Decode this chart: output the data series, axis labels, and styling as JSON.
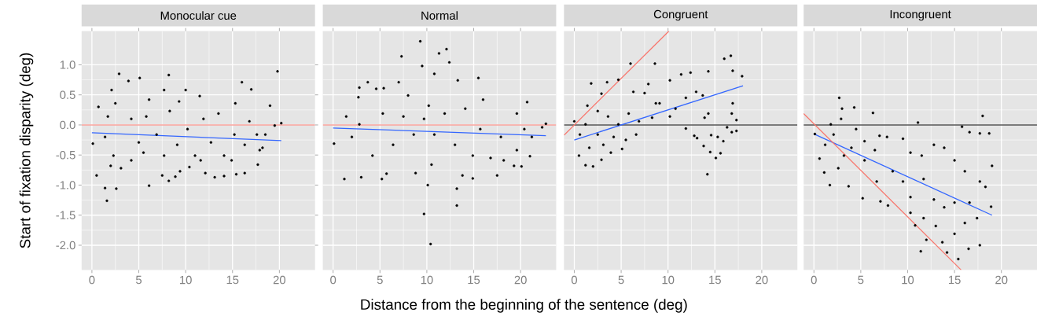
{
  "chart_data": [
    {
      "type": "scatter",
      "title": "Monocular cue",
      "ylabel": "Start of fixation disparity (deg)",
      "xlabel": "Distance from the beginning of the sentence (deg)",
      "xlim": [
        -1.1,
        23.8
      ],
      "ylim": [
        -2.41,
        1.56
      ],
      "xticks": [
        0,
        5,
        10,
        15,
        20
      ],
      "yticks": [
        {
          "value": -2,
          "label": "-2.0"
        },
        {
          "value": -1.5,
          "label": "-1.5"
        },
        {
          "value": -1,
          "label": "-1.0"
        },
        {
          "value": -0.5,
          "label": "-0.5"
        },
        {
          "value": 0,
          "label": "0.0"
        },
        {
          "value": 0.5,
          "label": "0.5"
        },
        {
          "value": 1,
          "label": "1.0"
        }
      ],
      "grid": true,
      "ref_lines": [
        {
          "axis": "y",
          "value": 0,
          "color": "#f8766d"
        }
      ],
      "series": [
        {
          "marker": "circle",
          "color": "#000000",
          "x": [
            2.9,
            19.8,
            5.1,
            8.2,
            3.9,
            16.0,
            17.0,
            7.7,
            10.0,
            2.1,
            11.5,
            9.3,
            19.0,
            15.3,
            0.7,
            6.1,
            0.1,
            0.5,
            1.4,
            1.6,
            2.6,
            6.1,
            8.2,
            7.5,
            8.9,
            9.4,
            10.4,
            12.1,
            13.1,
            14.1,
            15.4,
            16.3,
            17.7,
            18.2,
            18.5,
            20.2,
            19.5,
            1.7,
            1.4,
            2.3,
            3.1,
            4.2,
            5.0,
            5.8,
            6.9,
            8.3,
            9.1,
            10.2,
            11.0,
            11.9,
            12.7,
            13.5,
            14.1,
            15.2,
            16.3,
            16.8,
            17.6,
            17.9,
            2.5,
            4.2,
            5.5,
            7.7,
            11.6,
            14.9,
            2.0
          ],
          "values": [
            0.85,
            0.89,
            0.78,
            0.83,
            0.73,
            0.71,
            0.59,
            0.58,
            0.58,
            0.58,
            0.48,
            0.39,
            0.32,
            0.36,
            0.3,
            0.42,
            -0.31,
            -0.84,
            -1.05,
            -1.26,
            -1.06,
            -1.01,
            -0.93,
            -0.84,
            -0.86,
            -0.77,
            -0.7,
            -0.8,
            -0.87,
            -0.85,
            -0.82,
            -0.8,
            -0.66,
            -0.38,
            -0.16,
            0.03,
            -0.01,
            0.14,
            -0.2,
            -0.51,
            -0.72,
            -0.59,
            -0.29,
            0.14,
            -0.16,
            0.23,
            -0.33,
            -0.07,
            -0.51,
            0.1,
            -0.29,
            0.19,
            -0.51,
            -0.16,
            -0.33,
            0.06,
            -0.16,
            -0.42,
            0.36,
            0.1,
            -0.46,
            -0.51,
            -0.59,
            -0.59,
            -0.68
          ]
        },
        {
          "type": "line",
          "color": "#3366ff",
          "x": [
            0,
            20.2
          ],
          "values": [
            -0.13,
            -0.26
          ]
        }
      ]
    },
    {
      "type": "scatter",
      "title": "Normal",
      "xlim": [
        -1.1,
        23.8
      ],
      "ylim": [
        -2.41,
        1.56
      ],
      "xticks": [
        0,
        5,
        10,
        15,
        20
      ],
      "yticks": [
        -2,
        -1.5,
        -1,
        -0.5,
        0,
        0.5,
        1
      ],
      "tick_labels": "x",
      "grid": true,
      "ref_lines": [
        {
          "axis": "y",
          "value": 0,
          "color": "#f8766d"
        }
      ],
      "series": [
        {
          "marker": "circle",
          "color": "#000000",
          "x": [
            9.3,
            12.1,
            11.3,
            12.4,
            7.3,
            9.5,
            10.8,
            13.3,
            15.5,
            7.0,
            3.7,
            2.8,
            4.6,
            5.4,
            8.0,
            2.7,
            20.7,
            16.0,
            10.2,
            22.7,
            22.3,
            0.1,
            1.2,
            3.0,
            5.2,
            5.7,
            8.8,
            10.1,
            9.7,
            10.4,
            13.2,
            13.2,
            14.9,
            13.8,
            17.5,
            10.5,
            19.3,
            20.1,
            21.0,
            18.2,
            16.8,
            1.4,
            2.0,
            2.8,
            4.2,
            5.3,
            6.4,
            7.5,
            8.6,
            9.7,
            10.8,
            11.9,
            13.0,
            14.1,
            14.9,
            15.7,
            17.9,
            19.6,
            20.4,
            21.2,
            19.6
          ],
          "values": [
            1.39,
            1.26,
            1.19,
            1.04,
            1.14,
            0.98,
            0.85,
            0.74,
            0.78,
            0.71,
            0.71,
            0.62,
            0.6,
            0.61,
            0.49,
            0.46,
            0.38,
            0.42,
            0.32,
            0.02,
            -0.04,
            -0.31,
            -0.9,
            -0.87,
            -0.9,
            -0.81,
            -0.8,
            -1.0,
            -1.48,
            -1.98,
            -1.06,
            -1.34,
            -0.89,
            -0.84,
            -0.84,
            -0.66,
            -0.68,
            -0.69,
            -0.52,
            -0.59,
            -0.55,
            0.14,
            -0.2,
            0.01,
            -0.51,
            0.19,
            -0.33,
            0.14,
            -0.16,
            0.1,
            -0.16,
            0.19,
            -0.33,
            0.27,
            -0.51,
            -0.07,
            -0.2,
            0.19,
            -0.07,
            -0.2,
            -0.42
          ]
        },
        {
          "type": "line",
          "color": "#3366ff",
          "x": [
            0,
            22.7
          ],
          "values": [
            -0.05,
            -0.18
          ]
        }
      ]
    },
    {
      "type": "scatter",
      "title": "Congruent",
      "xlim": [
        -1.1,
        23.8
      ],
      "ylim": [
        -2.41,
        1.56
      ],
      "xticks": [
        0,
        5,
        10,
        15,
        20
      ],
      "yticks": [
        -2,
        -1.5,
        -1,
        -0.5,
        0,
        0.5,
        1
      ],
      "tick_labels": "x",
      "grid": true,
      "ref_lines": [
        {
          "axis": "y",
          "value": 0,
          "color": "#000000"
        }
      ],
      "series": [
        {
          "marker": "circle",
          "color": "#000000",
          "x": [
            0,
            6.0,
            8.6,
            16.0,
            16.7,
            1.8,
            3.5,
            4.7,
            2.9,
            1.4,
            17.9,
            16.9,
            14.3,
            12.4,
            11.4,
            10.2,
            7.9,
            6.3,
            7.5,
            8.7,
            10.8,
            11.9,
            13.0,
            13.7,
            13.9,
            14.3,
            11.9,
            12.8,
            13.1,
            13.8,
            14.2,
            14.5,
            15.1,
            15.6,
            15.9,
            15.3,
            14.6,
            16.3,
            16.8,
            17.3,
            17.3,
            16.8,
            16.9,
            1.2,
            2.0,
            2.9,
            0.5,
            1.6,
            2.5,
            3.1,
            3.9,
            0.6,
            4.2,
            5.1,
            5.5,
            6.6,
            4.7,
            6.9,
            5.8,
            8.3,
            9.1,
            10.2,
            3.6,
            2.5,
            1.2
          ],
          "values": [
            0.06,
            1.02,
            1.02,
            1.1,
            1.15,
            0.69,
            0.71,
            0.75,
            0.52,
            0.32,
            0.81,
            0.9,
            0.89,
            0.87,
            0.84,
            0.74,
            0.68,
            0.55,
            0.53,
            0.36,
            0.27,
            0.45,
            0.55,
            0.49,
            0.12,
            0.19,
            -0.06,
            -0.18,
            -0.22,
            -0.35,
            -0.82,
            -0.45,
            -0.55,
            -0.47,
            -0.27,
            -0.2,
            -0.17,
            -0.04,
            -0.12,
            -0.1,
            0.08,
            0.19,
            0.36,
            -0.67,
            -0.69,
            -0.58,
            -0.51,
            -0.38,
            -0.16,
            -0.33,
            -0.46,
            -0.16,
            -0.2,
            -0.4,
            -0.25,
            -0.16,
            0.01,
            0.06,
            0.19,
            0.12,
            0.36,
            0.14,
            0.14,
            0.23,
            0.01
          ]
        },
        {
          "type": "line",
          "color": "#3366ff",
          "x": [
            0,
            18.0
          ],
          "values": [
            -0.25,
            0.65
          ]
        },
        {
          "type": "line",
          "color": "#f8766d",
          "x": [
            -1.1,
            10.1
          ],
          "values": [
            -0.17,
            1.56
          ]
        }
      ]
    },
    {
      "type": "scatter",
      "title": "Incongruent",
      "xlim": [
        -1.1,
        23.8
      ],
      "ylim": [
        -2.41,
        1.56
      ],
      "xticks": [
        0,
        5,
        10,
        15,
        20
      ],
      "yticks": [
        -2,
        -1.5,
        -1,
        -0.5,
        0,
        0.5,
        1
      ],
      "tick_labels": "x",
      "grid": true,
      "ref_lines": [
        {
          "axis": "y",
          "value": 0,
          "color": "#000000"
        }
      ],
      "series": [
        {
          "marker": "circle",
          "color": "#000000",
          "x": [
            2.7,
            3.0,
            4.3,
            6.3,
            11.1,
            18.0,
            18.7,
            17.7,
            16.6,
            15.8,
            19.0,
            18.9,
            17.7,
            16.5,
            15.4,
            14.2,
            13.7,
            11.4,
            12.0,
            10.8,
            13.0,
            15.0,
            16.1,
            17.4,
            18.3,
            17.7,
            16.1,
            15.0,
            13.9,
            12.8,
            11.5,
            10.3,
            9.5,
            7.8,
            7.0,
            6.5,
            5.4,
            4.5,
            4.0,
            2.9,
            1.8,
            2.1,
            1.2,
            0.6,
            0.1,
            1.1,
            1.7,
            3.7,
            5.2,
            7.1,
            7.9,
            6.7,
            8.4,
            9.5,
            10.3,
            11.7,
            12.8,
            13.9,
            15.0,
            16.6,
            10.3,
            11.7,
            3.2,
            2.6,
            5.4
          ],
          "values": [
            0.45,
            0.27,
            0.29,
            0.2,
            0.04,
            0.15,
            -0.14,
            -0.14,
            -0.12,
            -0.03,
            -0.68,
            -1.36,
            -2.0,
            -2.06,
            -2.23,
            -2.12,
            -1.95,
            -2.1,
            -1.91,
            -1.67,
            -1.68,
            -1.81,
            -1.63,
            -1.55,
            -1.03,
            -0.94,
            -0.77,
            -0.59,
            -0.38,
            -0.33,
            -0.51,
            -0.46,
            -0.23,
            -0.2,
            -0.18,
            -0.42,
            -0.27,
            -0.07,
            -0.38,
            0.1,
            0.01,
            -0.16,
            -0.33,
            -0.56,
            -0.15,
            -0.79,
            -1.0,
            -1.02,
            -1.22,
            -1.27,
            -1.34,
            -0.94,
            -0.77,
            -0.94,
            -1.2,
            -0.9,
            -1.24,
            -1.37,
            -1.29,
            -1.29,
            -1.46,
            -1.55,
            -0.51,
            -0.72,
            -0.59
          ]
        },
        {
          "type": "line",
          "color": "#3366ff",
          "x": [
            0,
            19.0
          ],
          "values": [
            -0.15,
            -1.5
          ]
        },
        {
          "type": "line",
          "color": "#f8766d",
          "x": [
            -1.1,
            15.7
          ],
          "values": [
            0.19,
            -2.41
          ]
        }
      ]
    }
  ]
}
